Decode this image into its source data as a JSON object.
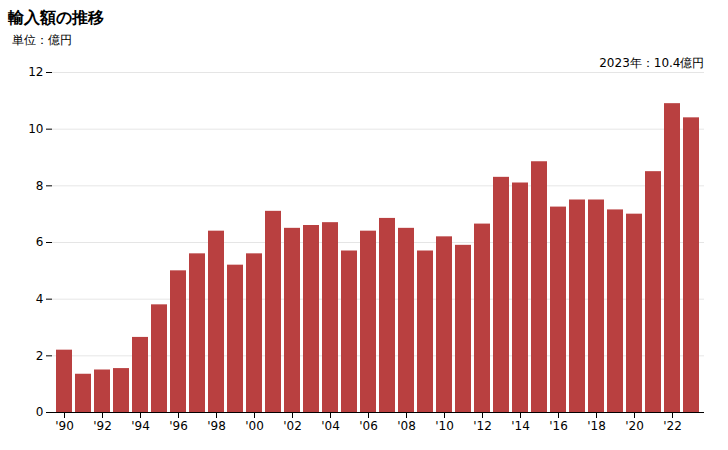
{
  "chart_data": {
    "type": "bar",
    "title": "輸入額の推移",
    "ylabel": "単位：億円",
    "annotation": "2023年：10.4億円",
    "categories": [
      "'90",
      null,
      "'92",
      null,
      "'94",
      null,
      "'96",
      null,
      "'98",
      null,
      "'00",
      null,
      "'02",
      null,
      "'04",
      null,
      "'06",
      null,
      "'08",
      null,
      "'10",
      null,
      "'12",
      null,
      "'14",
      null,
      "'16",
      null,
      "'18",
      null,
      "'20",
      null,
      "'22",
      null
    ],
    "values": [
      2.2,
      1.35,
      1.5,
      1.55,
      2.65,
      3.8,
      5.0,
      5.6,
      6.4,
      5.2,
      5.6,
      7.1,
      6.5,
      6.6,
      6.7,
      5.7,
      6.4,
      6.85,
      6.5,
      5.7,
      6.2,
      5.9,
      6.65,
      8.3,
      8.1,
      8.85,
      7.25,
      7.5,
      7.5,
      7.15,
      7.0,
      8.5,
      10.9,
      10.4
    ],
    "color": "#b94040",
    "ylim": [
      0,
      12
    ],
    "yticks": [
      0,
      2,
      4,
      6,
      8,
      10,
      12
    ],
    "grid": true
  }
}
